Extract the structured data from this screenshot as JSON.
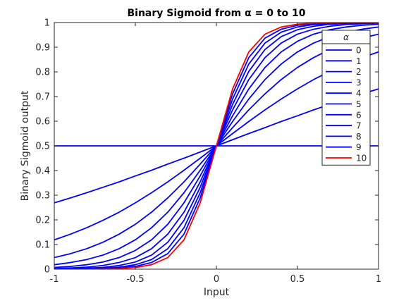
{
  "chart_data": {
    "type": "line",
    "title": "Binary Sigmoid from α = 0 to 10",
    "xlabel": "Input",
    "ylabel": "Binary Sigmoid output",
    "xlim": [
      -1,
      1
    ],
    "ylim": [
      0,
      1
    ],
    "x_ticks": [
      -1,
      -0.5,
      0,
      0.5,
      1
    ],
    "x_tick_labels": [
      "-1",
      "-0.5",
      "0",
      "0.5",
      "1"
    ],
    "y_ticks": [
      0,
      0.1,
      0.2,
      0.3,
      0.4,
      0.5,
      0.6,
      0.7,
      0.8,
      0.9,
      1
    ],
    "y_tick_labels": [
      "0",
      "0.1",
      "0.2",
      "0.3",
      "0.4",
      "0.5",
      "0.6",
      "0.7",
      "0.8",
      "0.9",
      "1"
    ],
    "grid": false,
    "legend": {
      "title": "α",
      "placement": "top-right"
    },
    "x": [
      -1,
      -0.9,
      -0.8,
      -0.7,
      -0.6,
      -0.5,
      -0.4,
      -0.3,
      -0.2,
      -0.1,
      0,
      0.1,
      0.2,
      0.3,
      0.4,
      0.5,
      0.6,
      0.7,
      0.8,
      0.9,
      1
    ],
    "series": [
      {
        "name": "0",
        "color": "#0000ff",
        "values": [
          0.5,
          0.5,
          0.5,
          0.5,
          0.5,
          0.5,
          0.5,
          0.5,
          0.5,
          0.5,
          0.5,
          0.5,
          0.5,
          0.5,
          0.5,
          0.5,
          0.5,
          0.5,
          0.5,
          0.5,
          0.5
        ]
      },
      {
        "name": "1",
        "color": "#0000ff",
        "values": [
          0.269,
          0.289,
          0.31,
          0.332,
          0.354,
          0.378,
          0.401,
          0.426,
          0.45,
          0.475,
          0.5,
          0.525,
          0.55,
          0.574,
          0.599,
          0.622,
          0.646,
          0.668,
          0.69,
          0.711,
          0.731
        ]
      },
      {
        "name": "2",
        "color": "#0000ff",
        "values": [
          0.119,
          0.142,
          0.168,
          0.198,
          0.231,
          0.269,
          0.31,
          0.354,
          0.401,
          0.45,
          0.5,
          0.55,
          0.599,
          0.646,
          0.69,
          0.731,
          0.769,
          0.802,
          0.832,
          0.858,
          0.881
        ]
      },
      {
        "name": "3",
        "color": "#0000ff",
        "values": [
          0.047,
          0.063,
          0.083,
          0.109,
          0.142,
          0.182,
          0.231,
          0.289,
          0.354,
          0.426,
          0.5,
          0.574,
          0.646,
          0.711,
          0.769,
          0.818,
          0.858,
          0.891,
          0.917,
          0.937,
          0.953
        ]
      },
      {
        "name": "4",
        "color": "#0000ff",
        "values": [
          0.018,
          0.027,
          0.039,
          0.057,
          0.083,
          0.119,
          0.168,
          0.231,
          0.31,
          0.401,
          0.5,
          0.599,
          0.69,
          0.769,
          0.832,
          0.881,
          0.917,
          0.943,
          0.961,
          0.973,
          0.982
        ]
      },
      {
        "name": "5",
        "color": "#0000ff",
        "values": [
          0.007,
          0.011,
          0.018,
          0.029,
          0.047,
          0.076,
          0.119,
          0.182,
          0.269,
          0.378,
          0.5,
          0.622,
          0.731,
          0.818,
          0.881,
          0.924,
          0.953,
          0.971,
          0.982,
          0.989,
          0.993
        ]
      },
      {
        "name": "6",
        "color": "#0000ff",
        "values": [
          0.002,
          0.005,
          0.008,
          0.015,
          0.027,
          0.047,
          0.083,
          0.142,
          0.231,
          0.354,
          0.5,
          0.646,
          0.769,
          0.858,
          0.917,
          0.953,
          0.973,
          0.985,
          0.992,
          0.995,
          0.998
        ]
      },
      {
        "name": "7",
        "color": "#0000ff",
        "values": [
          0.001,
          0.002,
          0.004,
          0.007,
          0.015,
          0.029,
          0.057,
          0.109,
          0.198,
          0.332,
          0.5,
          0.668,
          0.802,
          0.891,
          0.943,
          0.971,
          0.985,
          0.993,
          0.996,
          0.998,
          0.999
        ]
      },
      {
        "name": "8",
        "color": "#0000ff",
        "values": [
          0.0,
          0.001,
          0.002,
          0.004,
          0.008,
          0.018,
          0.039,
          0.083,
          0.168,
          0.31,
          0.5,
          0.69,
          0.832,
          0.917,
          0.961,
          0.982,
          0.992,
          0.996,
          0.998,
          0.999,
          1.0
        ]
      },
      {
        "name": "9",
        "color": "#0000ff",
        "values": [
          0.0,
          0.0,
          0.001,
          0.002,
          0.005,
          0.011,
          0.027,
          0.063,
          0.142,
          0.289,
          0.5,
          0.711,
          0.858,
          0.937,
          0.973,
          0.989,
          0.995,
          0.998,
          0.999,
          1.0,
          1.0
        ]
      },
      {
        "name": "10",
        "color": "#ff0000",
        "values": [
          0.0,
          0.0,
          0.0,
          0.001,
          0.002,
          0.007,
          0.018,
          0.047,
          0.119,
          0.269,
          0.5,
          0.731,
          0.881,
          0.953,
          0.982,
          0.993,
          0.998,
          0.999,
          1.0,
          1.0,
          1.0
        ]
      }
    ]
  }
}
